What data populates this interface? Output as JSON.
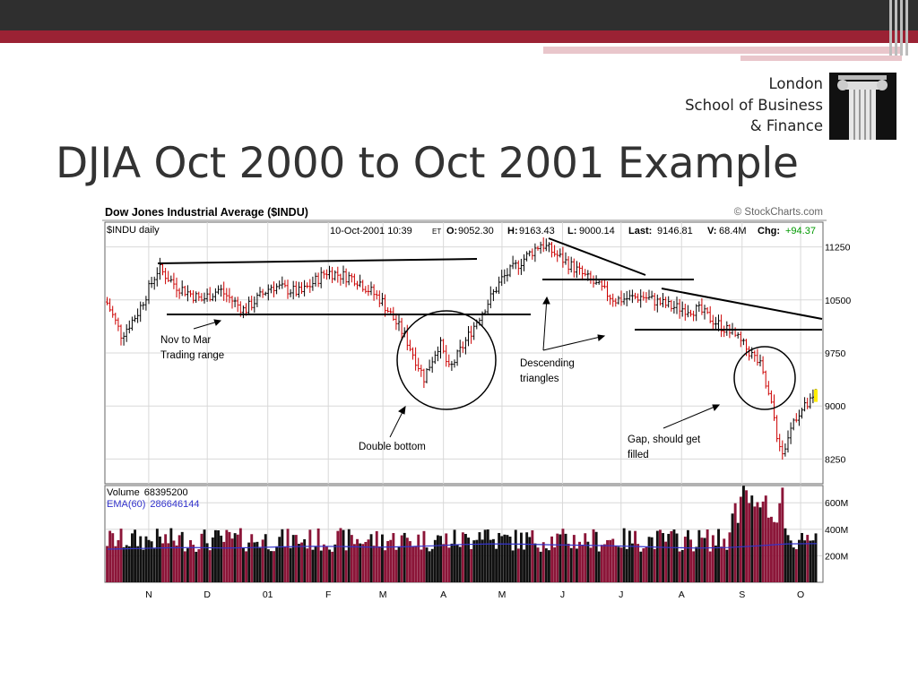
{
  "slide": {
    "title": "DJIA Oct 2000 to Oct 2001 Example",
    "logo_lines": [
      "London",
      "School of Business",
      "& Finance"
    ]
  },
  "colors": {
    "accent_red": "#9b2234",
    "dark_bar": "#2f2f2f",
    "candle_up": "#000000",
    "candle_down": "#cc0000",
    "volume_up": "#111111",
    "volume_down": "#8b1538",
    "ema_line": "#3333cc"
  },
  "chart_data": {
    "type": "line",
    "title": "Dow Jones Industrial Average ($INDU)",
    "source": "© StockCharts.com",
    "panel_label": "$INDU daily",
    "quote": {
      "date": "10-Oct-2001 10:39",
      "et": "ET",
      "open_label": "O:",
      "open": "9052.30",
      "high_label": "H:",
      "high": "9163.43",
      "low_label": "L:",
      "low": "9000.14",
      "last_label": "Last:",
      "last": "9146.81",
      "vol_label": "V:",
      "vol": "68.4M",
      "chg_label": "Chg:",
      "chg": "+94.37"
    },
    "x_ticks": [
      "N",
      "D",
      "01",
      "F",
      "M",
      "A",
      "M",
      "J",
      "J",
      "A",
      "S",
      "O"
    ],
    "y_ticks": [
      "11250",
      "10500",
      "9750",
      "9000",
      "8250"
    ],
    "ylim": [
      7900,
      11600
    ],
    "price_series": [
      {
        "date": "2000-10-10",
        "value": 10500
      },
      {
        "date": "2000-10-18",
        "value": 10000
      },
      {
        "date": "2000-10-26",
        "value": 10300
      },
      {
        "date": "2000-11-06",
        "value": 10950
      },
      {
        "date": "2000-11-15",
        "value": 10700
      },
      {
        "date": "2000-11-28",
        "value": 10500
      },
      {
        "date": "2000-12-07",
        "value": 10650
      },
      {
        "date": "2000-12-20",
        "value": 10350
      },
      {
        "date": "2001-01-03",
        "value": 10700
      },
      {
        "date": "2001-01-18",
        "value": 10600
      },
      {
        "date": "2001-01-31",
        "value": 10900
      },
      {
        "date": "2001-02-15",
        "value": 10800
      },
      {
        "date": "2001-02-28",
        "value": 10500
      },
      {
        "date": "2001-03-12",
        "value": 10000
      },
      {
        "date": "2001-03-22",
        "value": 9400
      },
      {
        "date": "2001-03-30",
        "value": 9900
      },
      {
        "date": "2001-04-04",
        "value": 9500
      },
      {
        "date": "2001-04-18",
        "value": 10200
      },
      {
        "date": "2001-05-01",
        "value": 10800
      },
      {
        "date": "2001-05-21",
        "value": 11300
      },
      {
        "date": "2001-06-07",
        "value": 10950
      },
      {
        "date": "2001-06-28",
        "value": 10500
      },
      {
        "date": "2001-07-12",
        "value": 10550
      },
      {
        "date": "2001-07-27",
        "value": 10400
      },
      {
        "date": "2001-08-10",
        "value": 10350
      },
      {
        "date": "2001-08-28",
        "value": 10000
      },
      {
        "date": "2001-09-10",
        "value": 9600
      },
      {
        "date": "2001-09-17",
        "value": 8900
      },
      {
        "date": "2001-09-21",
        "value": 8250
      },
      {
        "date": "2001-09-28",
        "value": 8850
      },
      {
        "date": "2001-10-10",
        "value": 9147
      }
    ],
    "volume": {
      "label": "Volume",
      "value": "68395200",
      "ema_label": "EMA(60)",
      "ema_value": "286646144",
      "y_ticks": [
        "600M",
        "400M",
        "200M"
      ],
      "ylim": [
        0,
        730
      ],
      "ema_series": [
        250,
        255,
        260,
        262,
        258,
        262,
        268,
        272,
        270,
        265,
        268,
        275,
        285,
        290,
        288,
        283,
        280,
        276,
        270,
        262,
        258,
        262,
        275,
        290,
        292
      ]
    },
    "annotations": [
      {
        "text": [
          "Nov to Mar",
          "Trading range"
        ]
      },
      {
        "text": [
          "Double bottom"
        ]
      },
      {
        "text": [
          "Descending",
          "triangles"
        ]
      },
      {
        "text": [
          "Gap, should get",
          "filled"
        ]
      }
    ]
  }
}
